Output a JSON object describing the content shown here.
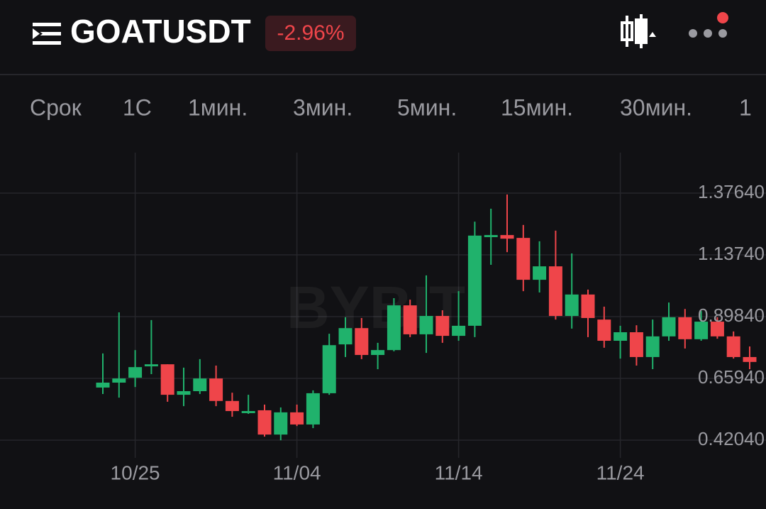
{
  "header": {
    "title": "GOATUSDT",
    "change": "-2.96%"
  },
  "tabs": [
    "Срок",
    "1С",
    "1мин.",
    "3мин.",
    "5мин.",
    "15мин.",
    "30мин.",
    "1"
  ],
  "watermark": "BYBIT",
  "chart_data": {
    "type": "candlestick",
    "categories": [
      null,
      null,
      "10/25",
      null,
      null,
      null,
      null,
      null,
      null,
      null,
      null,
      null,
      "11/04",
      null,
      null,
      null,
      null,
      null,
      null,
      null,
      null,
      null,
      "11/14",
      null,
      null,
      null,
      null,
      null,
      null,
      null,
      null,
      null,
      "11/24",
      null,
      null,
      null,
      null,
      null,
      null,
      null,
      null
    ],
    "open": [
      0.624,
      0.643,
      0.662,
      0.706,
      0.714,
      0.596,
      0.61,
      0.659,
      0.572,
      0.525,
      0.536,
      0.442,
      0.528,
      0.481,
      0.602,
      0.791,
      0.854,
      0.75,
      0.769,
      0.942,
      0.83,
      0.901,
      0.824,
      0.863,
      1.206,
      1.214,
      1.203,
      1.041,
      1.093,
      0.901,
      0.984,
      0.887,
      0.805,
      0.838,
      0.742,
      0.822,
      0.896,
      0.811,
      0.879,
      0.822,
      0.742
    ],
    "high": [
      0.756,
      0.915,
      0.769,
      0.885,
      0.714,
      0.701,
      0.734,
      0.709,
      0.604,
      0.596,
      0.558,
      0.547,
      0.558,
      0.613,
      0.832,
      0.896,
      0.893,
      0.797,
      0.97,
      0.964,
      1.058,
      0.923,
      0.997,
      1.266,
      1.316,
      1.371,
      1.253,
      1.19,
      1.231,
      1.143,
      1.003,
      0.937,
      0.863,
      0.865,
      0.887,
      0.953,
      0.928,
      0.92,
      0.896,
      0.841,
      0.783
    ],
    "low": [
      0.599,
      0.585,
      0.626,
      0.676,
      0.569,
      0.552,
      0.599,
      0.552,
      0.511,
      0.522,
      0.434,
      0.42,
      0.475,
      0.467,
      0.596,
      0.742,
      0.734,
      0.695,
      0.764,
      0.819,
      0.758,
      0.797,
      0.805,
      0.819,
      1.099,
      1.148,
      0.997,
      0.992,
      0.887,
      0.852,
      0.819,
      0.778,
      0.736,
      0.709,
      0.695,
      0.805,
      0.775,
      0.805,
      0.813,
      0.736,
      0.695
    ],
    "close": [
      0.643,
      0.659,
      0.703,
      0.714,
      0.596,
      0.61,
      0.659,
      0.572,
      0.533,
      0.533,
      0.442,
      0.528,
      0.481,
      0.602,
      0.788,
      0.854,
      0.75,
      0.769,
      0.942,
      0.83,
      0.901,
      0.824,
      0.863,
      1.212,
      1.214,
      1.2,
      1.041,
      1.093,
      0.901,
      0.984,
      0.893,
      0.805,
      0.838,
      0.742,
      0.822,
      0.896,
      0.811,
      0.879,
      0.822,
      0.742,
      0.723
    ],
    "up_color": "#20b26c",
    "down_color": "#ef454a",
    "ylim": [
      0.3655,
      1.533
    ],
    "yticks": [
      {
        "value": 0.4204,
        "label": "0.42040"
      },
      {
        "value": 0.6594,
        "label": "0.65940"
      },
      {
        "value": 0.8984,
        "label": "0.89840"
      },
      {
        "value": 1.1374,
        "label": "1.13740"
      },
      {
        "value": 1.3764,
        "label": "1.37640"
      }
    ],
    "grid": true
  }
}
